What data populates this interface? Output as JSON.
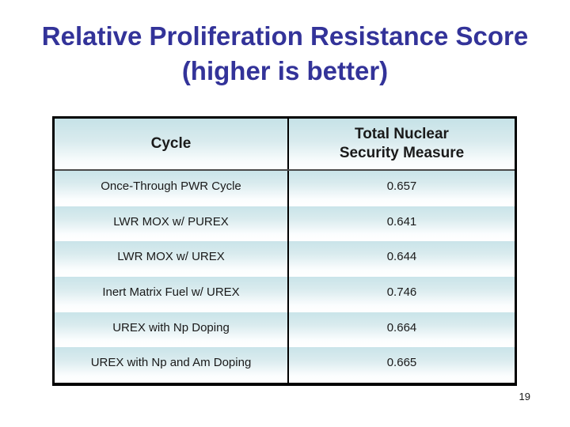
{
  "slide": {
    "title_line1": "Relative Proliferation Resistance Score",
    "title_line2": "(higher is better)",
    "page_number": "19"
  },
  "table": {
    "header": {
      "cycle": "Cycle",
      "measure_line1": "Total Nuclear",
      "measure_line2": "Security Measure"
    },
    "rows": [
      {
        "cycle": "Once-Through PWR Cycle",
        "value": "0.657"
      },
      {
        "cycle": "LWR MOX w/ PUREX",
        "value": "0.641"
      },
      {
        "cycle": "LWR MOX w/ UREX",
        "value": "0.644"
      },
      {
        "cycle": "Inert Matrix Fuel w/ UREX",
        "value": "0.746"
      },
      {
        "cycle": "UREX with Np Doping",
        "value": "0.664"
      },
      {
        "cycle": "UREX with Np and Am Doping",
        "value": "0.665"
      }
    ]
  },
  "colors": {
    "title": "#333399",
    "rowteal": "#c9e4e9",
    "border": "#000000",
    "headersep": "#4a4a4a"
  },
  "chart_data": {
    "type": "table",
    "title": "Relative Proliferation Resistance Score (higher is better)",
    "columns": [
      "Cycle",
      "Total Nuclear Security Measure"
    ],
    "categories": [
      "Once-Through PWR Cycle",
      "LWR MOX w/ PUREX",
      "LWR MOX w/ UREX",
      "Inert Matrix Fuel w/ UREX",
      "UREX with Np Doping",
      "UREX with Np and Am Doping"
    ],
    "values": [
      0.657,
      0.641,
      0.644,
      0.746,
      0.664,
      0.665
    ]
  }
}
